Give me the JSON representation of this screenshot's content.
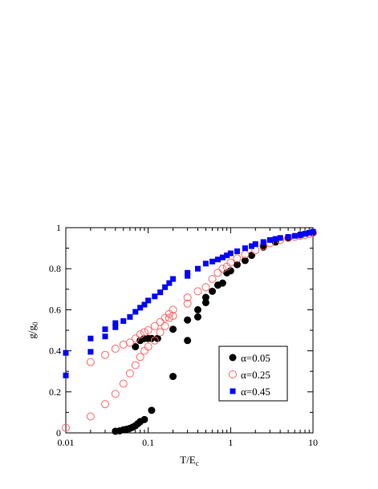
{
  "chart_data": {
    "type": "scatter",
    "title": "",
    "xlabel": {
      "main": "T/E",
      "sub": "c"
    },
    "ylabel": {
      "main": "g/g",
      "sub": "0"
    },
    "xscale": "log",
    "xlim": [
      0.01,
      10
    ],
    "ylim": [
      0,
      1
    ],
    "xticks": [
      {
        "value": 0.01,
        "label": "0.01"
      },
      {
        "value": 0.1,
        "label": "0.1"
      },
      {
        "value": 1,
        "label": "1"
      },
      {
        "value": 10,
        "label": "10"
      }
    ],
    "yticks": [
      {
        "value": 0,
        "label": "0"
      },
      {
        "value": 0.2,
        "label": "0.2"
      },
      {
        "value": 0.4,
        "label": "0.4"
      },
      {
        "value": 0.6,
        "label": "0.6"
      },
      {
        "value": 0.8,
        "label": "0.8"
      },
      {
        "value": 1,
        "label": "1"
      }
    ],
    "grid": false,
    "legend_position": "lower-right",
    "series": [
      {
        "name": "α=0.05",
        "marker": "filled-circle",
        "color": "#000000",
        "points": [
          [
            0.04,
            0.008
          ],
          [
            0.045,
            0.01
          ],
          [
            0.05,
            0.015
          ],
          [
            0.055,
            0.018
          ],
          [
            0.06,
            0.022
          ],
          [
            0.065,
            0.028
          ],
          [
            0.07,
            0.035
          ],
          [
            0.075,
            0.045
          ],
          [
            0.08,
            0.055
          ],
          [
            0.09,
            0.065
          ],
          [
            0.11,
            0.11
          ],
          [
            0.07,
            0.42
          ],
          [
            0.08,
            0.45
          ],
          [
            0.09,
            0.46
          ],
          [
            0.1,
            0.46
          ],
          [
            0.11,
            0.46
          ],
          [
            0.13,
            0.46
          ],
          [
            0.2,
            0.275
          ],
          [
            0.2,
            0.505
          ],
          [
            0.3,
            0.55
          ],
          [
            0.3,
            0.45
          ],
          [
            0.4,
            0.6
          ],
          [
            0.4,
            0.565
          ],
          [
            0.5,
            0.635
          ],
          [
            0.5,
            0.66
          ],
          [
            0.6,
            0.69
          ],
          [
            0.7,
            0.72
          ],
          [
            0.8,
            0.73
          ],
          [
            0.9,
            0.78
          ],
          [
            1.0,
            0.79
          ],
          [
            1.2,
            0.82
          ],
          [
            1.5,
            0.84
          ],
          [
            1.8,
            0.865
          ],
          [
            2.5,
            0.905
          ],
          [
            3.5,
            0.93
          ],
          [
            5,
            0.95
          ],
          [
            7,
            0.965
          ],
          [
            10,
            0.978
          ]
        ]
      },
      {
        "name": "α=0.25",
        "marker": "open-circle",
        "color": "#ff6666",
        "points": [
          [
            0.01,
            0.025
          ],
          [
            0.02,
            0.08
          ],
          [
            0.03,
            0.14
          ],
          [
            0.04,
            0.19
          ],
          [
            0.05,
            0.24
          ],
          [
            0.06,
            0.29
          ],
          [
            0.07,
            0.33
          ],
          [
            0.08,
            0.37
          ],
          [
            0.09,
            0.4
          ],
          [
            0.1,
            0.42
          ],
          [
            0.12,
            0.45
          ],
          [
            0.14,
            0.49
          ],
          [
            0.16,
            0.52
          ],
          [
            0.18,
            0.56
          ],
          [
            0.2,
            0.57
          ],
          [
            0.3,
            0.63
          ],
          [
            0.4,
            0.69
          ],
          [
            0.5,
            0.71
          ],
          [
            0.6,
            0.75
          ],
          [
            0.7,
            0.78
          ],
          [
            0.8,
            0.8
          ],
          [
            0.9,
            0.81
          ],
          [
            1.0,
            0.83
          ],
          [
            1.2,
            0.85
          ],
          [
            1.5,
            0.87
          ],
          [
            2,
            0.89
          ],
          [
            2.5,
            0.91
          ],
          [
            3,
            0.925
          ],
          [
            4,
            0.94
          ],
          [
            5,
            0.95
          ],
          [
            6,
            0.955
          ],
          [
            7,
            0.96
          ],
          [
            8,
            0.965
          ],
          [
            9,
            0.97
          ],
          [
            10,
            0.975
          ],
          [
            0.02,
            0.345
          ],
          [
            0.03,
            0.38
          ],
          [
            0.04,
            0.41
          ],
          [
            0.05,
            0.43
          ],
          [
            0.06,
            0.44
          ],
          [
            0.07,
            0.46
          ],
          [
            0.08,
            0.48
          ],
          [
            0.09,
            0.49
          ],
          [
            0.1,
            0.5
          ],
          [
            0.12,
            0.52
          ],
          [
            0.14,
            0.54
          ],
          [
            0.16,
            0.56
          ],
          [
            0.18,
            0.58
          ],
          [
            0.2,
            0.6
          ],
          [
            0.3,
            0.66
          ]
        ]
      },
      {
        "name": "α=0.45",
        "marker": "filled-square",
        "color": "#0000ff",
        "points": [
          [
            0.01,
            0.28
          ],
          [
            0.01,
            0.39
          ],
          [
            0.02,
            0.395
          ],
          [
            0.02,
            0.46
          ],
          [
            0.03,
            0.47
          ],
          [
            0.03,
            0.505
          ],
          [
            0.04,
            0.515
          ],
          [
            0.04,
            0.535
          ],
          [
            0.05,
            0.545
          ],
          [
            0.06,
            0.565
          ],
          [
            0.07,
            0.59
          ],
          [
            0.08,
            0.61
          ],
          [
            0.09,
            0.625
          ],
          [
            0.1,
            0.645
          ],
          [
            0.12,
            0.665
          ],
          [
            0.14,
            0.685
          ],
          [
            0.16,
            0.71
          ],
          [
            0.18,
            0.73
          ],
          [
            0.2,
            0.75
          ],
          [
            0.3,
            0.765
          ],
          [
            0.3,
            0.78
          ],
          [
            0.4,
            0.8
          ],
          [
            0.5,
            0.825
          ],
          [
            0.6,
            0.835
          ],
          [
            0.7,
            0.845
          ],
          [
            0.8,
            0.855
          ],
          [
            0.9,
            0.865
          ],
          [
            1.0,
            0.875
          ],
          [
            1.2,
            0.885
          ],
          [
            1.5,
            0.9
          ],
          [
            1.8,
            0.91
          ],
          [
            2,
            0.92
          ],
          [
            2.5,
            0.93
          ],
          [
            3,
            0.94
          ],
          [
            3.5,
            0.945
          ],
          [
            4,
            0.95
          ],
          [
            5,
            0.955
          ],
          [
            6,
            0.96
          ],
          [
            7,
            0.965
          ],
          [
            8,
            0.97
          ],
          [
            9,
            0.975
          ],
          [
            10,
            0.98
          ]
        ]
      }
    ]
  }
}
